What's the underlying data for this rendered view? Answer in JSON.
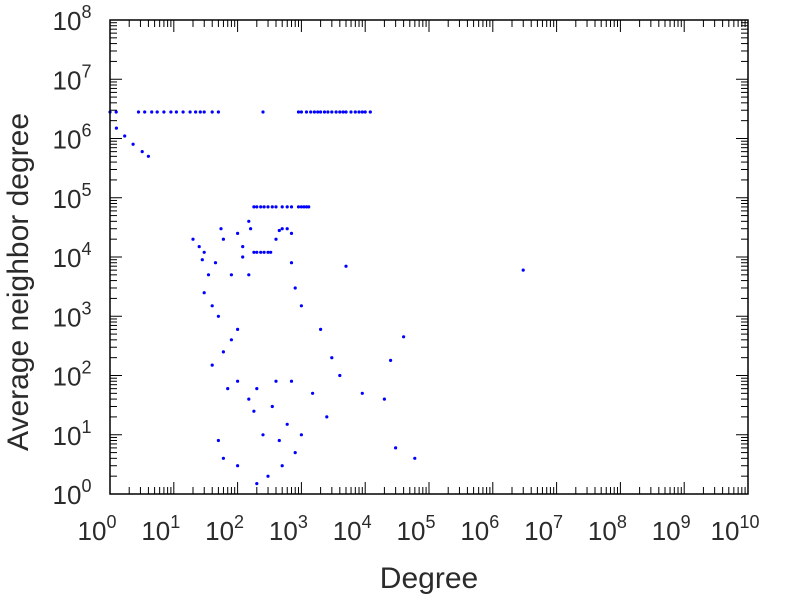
{
  "chart_data": {
    "type": "scatter",
    "title": "",
    "xlabel": "Degree",
    "ylabel": "Average neighbor degree",
    "x_scale": "log",
    "y_scale": "log",
    "xlim": [
      1,
      10000000000
    ],
    "ylim": [
      1,
      100000000
    ],
    "x_ticks": [
      {
        "base": "10",
        "exp": "0"
      },
      {
        "base": "10",
        "exp": "1"
      },
      {
        "base": "10",
        "exp": "2"
      },
      {
        "base": "10",
        "exp": "3"
      },
      {
        "base": "10",
        "exp": "4"
      },
      {
        "base": "10",
        "exp": "5"
      },
      {
        "base": "10",
        "exp": "6"
      },
      {
        "base": "10",
        "exp": "7"
      },
      {
        "base": "10",
        "exp": "8"
      },
      {
        "base": "10",
        "exp": "9"
      },
      {
        "base": "10",
        "exp": "10"
      }
    ],
    "y_ticks": [
      {
        "base": "10",
        "exp": "0"
      },
      {
        "base": "10",
        "exp": "1"
      },
      {
        "base": "10",
        "exp": "2"
      },
      {
        "base": "10",
        "exp": "3"
      },
      {
        "base": "10",
        "exp": "4"
      },
      {
        "base": "10",
        "exp": "5"
      },
      {
        "base": "10",
        "exp": "6"
      },
      {
        "base": "10",
        "exp": "7"
      },
      {
        "base": "10",
        "exp": "8"
      }
    ],
    "grid": false,
    "marker_color": "#0000ff",
    "series": [
      {
        "points": [
          [
            1,
            2800000.0
          ],
          [
            1.25,
            2800000.0
          ],
          [
            1.26,
            1500000.0
          ],
          [
            1.7,
            1100000.0
          ],
          [
            2.3,
            800000.0
          ],
          [
            3.2,
            600000.0
          ],
          [
            4,
            500000.0
          ],
          [
            2.8,
            2800000.0
          ],
          [
            3.5,
            2800000.0
          ],
          [
            4.5,
            2800000.0
          ],
          [
            5.5,
            2800000.0
          ],
          [
            7,
            2800000.0
          ],
          [
            9,
            2800000.0
          ],
          [
            11,
            2800000.0
          ],
          [
            14,
            2800000.0
          ],
          [
            18,
            2800000.0
          ],
          [
            22,
            2800000.0
          ],
          [
            26,
            2800000.0
          ],
          [
            30,
            2800000.0
          ],
          [
            40,
            2800000.0
          ],
          [
            50,
            2800000.0
          ],
          [
            250,
            2800000.0
          ],
          [
            900,
            2800000.0
          ],
          [
            1000,
            2800000.0
          ],
          [
            1200,
            2800000.0
          ],
          [
            1400,
            2800000.0
          ],
          [
            1600,
            2800000.0
          ],
          [
            1800,
            2800000.0
          ],
          [
            2000,
            2800000.0
          ],
          [
            2300,
            2800000.0
          ],
          [
            2600,
            2800000.0
          ],
          [
            3000,
            2800000.0
          ],
          [
            3500,
            2800000.0
          ],
          [
            4000,
            2800000.0
          ],
          [
            4500,
            2800000.0
          ],
          [
            5000,
            2800000.0
          ],
          [
            6000,
            2800000.0
          ],
          [
            7000,
            2800000.0
          ],
          [
            8000,
            2800000.0
          ],
          [
            9000,
            2800000.0
          ],
          [
            10000,
            2800000.0
          ],
          [
            12000,
            2800000.0
          ],
          [
            180,
            70000.0
          ],
          [
            200,
            70000.0
          ],
          [
            230,
            70000.0
          ],
          [
            260,
            70000.0
          ],
          [
            300,
            70000.0
          ],
          [
            350,
            70000.0
          ],
          [
            400,
            70000.0
          ],
          [
            500,
            70000.0
          ],
          [
            600,
            70000.0
          ],
          [
            700,
            70000.0
          ],
          [
            900,
            70000.0
          ],
          [
            1000,
            70000.0
          ],
          [
            1100,
            70000.0
          ],
          [
            1200,
            70000.0
          ],
          [
            1300,
            70000.0
          ],
          [
            150,
            40000.0
          ],
          [
            160,
            30000.0
          ],
          [
            180,
            12000.0
          ],
          [
            200,
            12000.0
          ],
          [
            230,
            12000.0
          ],
          [
            260,
            12000.0
          ],
          [
            300,
            12000.0
          ],
          [
            330,
            12000.0
          ],
          [
            400,
            20000.0
          ],
          [
            450,
            28000.0
          ],
          [
            500,
            30000.0
          ],
          [
            600,
            30000.0
          ],
          [
            700,
            25000.0
          ],
          [
            100,
            25000.0
          ],
          [
            120,
            15000.0
          ],
          [
            80,
            5000.0
          ],
          [
            5000,
            7000.0
          ],
          [
            3000000.0,
            6000.0
          ],
          [
            40000,
            450
          ],
          [
            25000,
            180
          ],
          [
            20000,
            40
          ],
          [
            30000,
            6
          ],
          [
            60000,
            4
          ],
          [
            700,
            8000.0
          ],
          [
            800,
            3000.0
          ],
          [
            1000,
            1500
          ],
          [
            2000,
            600
          ],
          [
            3000,
            200
          ],
          [
            4000,
            100
          ],
          [
            1500,
            50
          ],
          [
            2500,
            20
          ],
          [
            1000,
            10
          ],
          [
            800,
            5
          ],
          [
            500,
            3
          ],
          [
            300,
            2
          ],
          [
            200,
            1.5
          ],
          [
            100,
            3
          ],
          [
            60,
            4
          ],
          [
            50,
            8
          ],
          [
            400,
            80
          ],
          [
            200,
            60
          ],
          [
            150,
            40
          ],
          [
            100,
            80
          ],
          [
            70,
            60
          ],
          [
            40,
            150
          ],
          [
            60,
            250
          ],
          [
            80,
            400
          ],
          [
            100,
            600
          ],
          [
            50,
            1000
          ],
          [
            40,
            1500
          ],
          [
            30,
            2500
          ],
          [
            35,
            5000
          ],
          [
            45,
            8000
          ],
          [
            30,
            12000
          ],
          [
            20,
            20000
          ],
          [
            25,
            15000
          ],
          [
            28,
            9000
          ],
          [
            60,
            20000
          ],
          [
            55,
            30000
          ],
          [
            120,
            10000
          ],
          [
            150,
            5000
          ],
          [
            9000,
            50
          ],
          [
            600,
            15
          ],
          [
            700,
            80
          ],
          [
            250,
            10
          ],
          [
            180,
            25
          ],
          [
            350,
            30
          ],
          [
            450,
            8
          ]
        ]
      }
    ]
  }
}
